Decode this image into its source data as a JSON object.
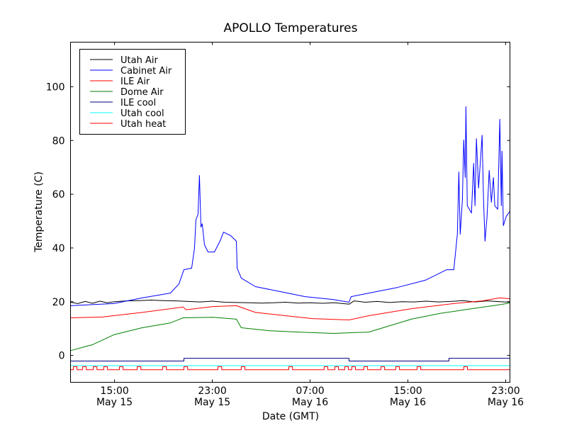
{
  "chart_data": {
    "type": "line",
    "title": "APOLLO Temperatures",
    "xlabel": "Date (GMT)",
    "ylabel": "Temperature (C)",
    "x_units": "hours since May 15 00:00 GMT",
    "xlim": [
      11.4,
      47.35
    ],
    "ylim": [
      -10,
      116.6
    ],
    "grid": false,
    "legend_position": "top-left",
    "yticks": [
      0,
      20,
      40,
      60,
      80,
      100
    ],
    "xticks": [
      {
        "x": 15,
        "time": "15:00",
        "date": "May 15"
      },
      {
        "x": 23,
        "time": "23:00",
        "date": "May 15"
      },
      {
        "x": 31,
        "time": "07:00",
        "date": "May 16"
      },
      {
        "x": 39,
        "time": "15:00",
        "date": "May 16"
      },
      {
        "x": 47,
        "time": "23:00",
        "date": "May 16"
      }
    ],
    "series": [
      {
        "name": "Utah Air",
        "color": "#000000",
        "points": [
          [
            11.4,
            19.8
          ],
          [
            12,
            19.3
          ],
          [
            12.6,
            20.1
          ],
          [
            13.2,
            19.4
          ],
          [
            13.8,
            20.2
          ],
          [
            14.4,
            19.6
          ],
          [
            15,
            20.0
          ],
          [
            16,
            20.3
          ],
          [
            17,
            20.4
          ],
          [
            18,
            20.6
          ],
          [
            19,
            20.4
          ],
          [
            20,
            20.3
          ],
          [
            21,
            20.1
          ],
          [
            22,
            19.9
          ],
          [
            23,
            20.2
          ],
          [
            24,
            19.8
          ],
          [
            25,
            19.7
          ],
          [
            26,
            19.6
          ],
          [
            27,
            19.5
          ],
          [
            28,
            19.6
          ],
          [
            29,
            19.8
          ],
          [
            30,
            19.5
          ],
          [
            31,
            19.6
          ],
          [
            32,
            19.4
          ],
          [
            33,
            19.6
          ],
          [
            34.2,
            19.1
          ],
          [
            34.6,
            20.3
          ],
          [
            35.5,
            19.8
          ],
          [
            36.5,
            20.1
          ],
          [
            37.5,
            19.7
          ],
          [
            38.5,
            20.0
          ],
          [
            39.5,
            19.9
          ],
          [
            40.5,
            20.2
          ],
          [
            41.5,
            19.9
          ],
          [
            42.5,
            20.1
          ],
          [
            43.5,
            20.4
          ],
          [
            44.5,
            19.9
          ],
          [
            45.5,
            20.3
          ],
          [
            46.5,
            20.0
          ],
          [
            47.35,
            19.8
          ]
        ]
      },
      {
        "name": "Cabinet Air",
        "color": "#0000ff",
        "points": [
          [
            11.4,
            18.5
          ],
          [
            14.94,
            19.3
          ],
          [
            17.26,
            21.4
          ],
          [
            19.57,
            23.2
          ],
          [
            20.27,
            26.6
          ],
          [
            20.68,
            31.9
          ],
          [
            21.31,
            32.5
          ],
          [
            21.54,
            39.8
          ],
          [
            21.66,
            50.4
          ],
          [
            21.83,
            52.5
          ],
          [
            21.95,
            67
          ],
          [
            22.07,
            47.8
          ],
          [
            22.18,
            49
          ],
          [
            22.36,
            41.2
          ],
          [
            22.65,
            38.5
          ],
          [
            23.17,
            38.5
          ],
          [
            23.63,
            42.5
          ],
          [
            23.92,
            45.9
          ],
          [
            24.5,
            44.6
          ],
          [
            24.97,
            42.5
          ],
          [
            25.03,
            32.5
          ],
          [
            25.37,
            28.8
          ],
          [
            26.53,
            25.6
          ],
          [
            28.85,
            23.5
          ],
          [
            30.59,
            21.9
          ],
          [
            32.91,
            20.8
          ],
          [
            34.18,
            19.8
          ],
          [
            34.36,
            21.9
          ],
          [
            35.81,
            23.2
          ],
          [
            38.13,
            25.3
          ],
          [
            40.44,
            28
          ],
          [
            42.18,
            31.9
          ],
          [
            42.76,
            31.9
          ],
          [
            43.05,
            45.1
          ],
          [
            43.17,
            68.3
          ],
          [
            43.28,
            45.1
          ],
          [
            43.46,
            57.8
          ],
          [
            43.57,
            80.2
          ],
          [
            43.69,
            66.2
          ],
          [
            43.75,
            92.6
          ],
          [
            43.86,
            55.7
          ],
          [
            44.03,
            54.4
          ],
          [
            44.2,
            53
          ],
          [
            44.38,
            71.5
          ],
          [
            44.49,
            55.7
          ],
          [
            44.61,
            80.7
          ],
          [
            44.78,
            62.3
          ],
          [
            44.96,
            74.1
          ],
          [
            45.07,
            82
          ],
          [
            45.19,
            58.3
          ],
          [
            45.31,
            42.5
          ],
          [
            45.48,
            51.7
          ],
          [
            45.65,
            68.9
          ],
          [
            45.83,
            57
          ],
          [
            46.0,
            66.2
          ],
          [
            46.11,
            55.7
          ],
          [
            46.35,
            54.4
          ],
          [
            46.52,
            87.9
          ],
          [
            46.64,
            55.7
          ],
          [
            46.7,
            76
          ],
          [
            46.81,
            48.3
          ],
          [
            47.04,
            51.7
          ],
          [
            47.34,
            53.6
          ]
        ]
      },
      {
        "name": "ILE Air",
        "color": "#ff0000",
        "points": [
          [
            11.4,
            14
          ],
          [
            14,
            14.3
          ],
          [
            17.26,
            16
          ],
          [
            20.62,
            18
          ],
          [
            20.85,
            17
          ],
          [
            23.05,
            18.2
          ],
          [
            24.97,
            18.5
          ],
          [
            26.53,
            16
          ],
          [
            31.17,
            13.7
          ],
          [
            34.18,
            13.2
          ],
          [
            35.81,
            14.8
          ],
          [
            39.29,
            17.4
          ],
          [
            42.76,
            19.3
          ],
          [
            45.07,
            20.3
          ],
          [
            46.52,
            21.4
          ],
          [
            47.34,
            21.1
          ]
        ]
      },
      {
        "name": "Dome Air",
        "color": "#008000",
        "points": [
          [
            11.4,
            1.8
          ],
          [
            13.2,
            4
          ],
          [
            14.94,
            7.7
          ],
          [
            17.26,
            10.3
          ],
          [
            19.57,
            12.1
          ],
          [
            20.62,
            14
          ],
          [
            23.05,
            14.2
          ],
          [
            24.97,
            13.5
          ],
          [
            25.37,
            10.3
          ],
          [
            27.69,
            9.2
          ],
          [
            30.01,
            8.7
          ],
          [
            32.91,
            8.2
          ],
          [
            35.81,
            8.7
          ],
          [
            36.97,
            10.3
          ],
          [
            39.29,
            13.5
          ],
          [
            41.6,
            15.6
          ],
          [
            43.92,
            17.2
          ],
          [
            46.23,
            18.7
          ],
          [
            47.34,
            19.5
          ]
        ]
      },
      {
        "name": "ILE cool",
        "color": "#000080",
        "points": [
          [
            11.4,
            -2.1
          ],
          [
            20.68,
            -2.1
          ],
          [
            20.68,
            -1.05
          ],
          [
            34.18,
            -1.05
          ],
          [
            34.18,
            -2.1
          ],
          [
            42.36,
            -2.1
          ],
          [
            42.36,
            -1.05
          ],
          [
            47.35,
            -1.05
          ]
        ]
      },
      {
        "name": "Utah cool",
        "color": "#00ffff",
        "points": [
          [
            11.4,
            -3.8
          ],
          [
            47.35,
            -3.8
          ]
        ]
      },
      {
        "name": "Utah heat",
        "color": "#ff0000",
        "low": -5.3,
        "high": -4.2,
        "pulse_hours": 0.3,
        "pulse_starts": [
          11.63,
          12.39,
          13.26,
          14.12,
          15.4,
          16.85,
          18.94,
          20.68,
          23.46,
          25.37,
          29.26,
          32.15,
          33.02,
          33.83,
          34.41,
          35.4,
          36.79,
          38.01,
          39.75,
          43.57
        ]
      }
    ]
  }
}
